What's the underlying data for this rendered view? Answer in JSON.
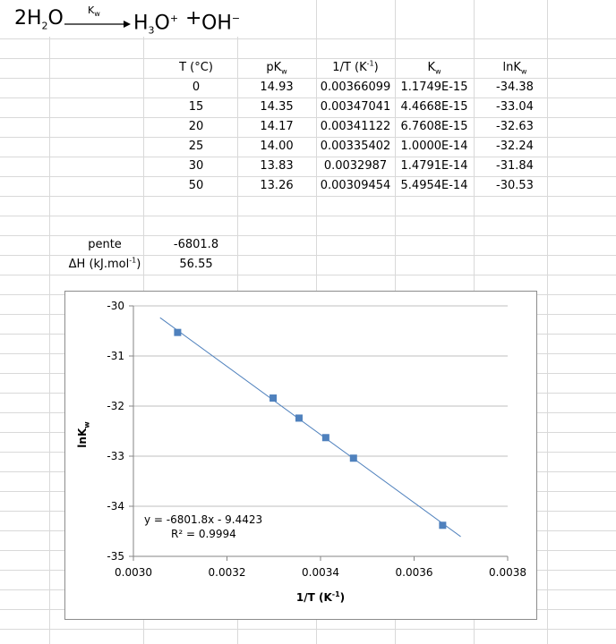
{
  "equation": {
    "left": "2H",
    "left_sub": "2",
    "left_end": "O",
    "catalyst": "K",
    "catalyst_sub": "w",
    "h3o": "H",
    "h3o_sub": "3",
    "h3o_end": "O",
    "h3o_sup": "+",
    "plus": "+",
    "oh": "OH",
    "oh_sup": "−"
  },
  "table": {
    "headers": {
      "t": "T (°C)",
      "pkw": "pK",
      "pkw_sub": "w",
      "invt": "1/T (K",
      "invt_sup": "-1",
      "invt_end": ")",
      "kw": "K",
      "kw_sub": "w",
      "lnkw": "lnK",
      "lnkw_sub": "w"
    },
    "rows": [
      {
        "t": "0",
        "pkw": "14.93",
        "invt": "0.00366099",
        "kw": "1.1749E-15",
        "lnkw": "-34.38"
      },
      {
        "t": "15",
        "pkw": "14.35",
        "invt": "0.00347041",
        "kw": "4.4668E-15",
        "lnkw": "-33.04"
      },
      {
        "t": "20",
        "pkw": "14.17",
        "invt": "0.00341122",
        "kw": "6.7608E-15",
        "lnkw": "-32.63"
      },
      {
        "t": "25",
        "pkw": "14.00",
        "invt": "0.00335402",
        "kw": "1.0000E-14",
        "lnkw": "-32.24"
      },
      {
        "t": "30",
        "pkw": "13.83",
        "invt": "0.0032987",
        "kw": "1.4791E-14",
        "lnkw": "-31.84"
      },
      {
        "t": "50",
        "pkw": "13.26",
        "invt": "0.00309454",
        "kw": "5.4954E-14",
        "lnkw": "-30.53"
      }
    ]
  },
  "results": {
    "pente_label": "pente",
    "pente_value": "-6801.8",
    "dh_label": "ΔH (kJ.mol",
    "dh_sup": "-1",
    "dh_end": ")",
    "dh_value": "56.55"
  },
  "chart_data": {
    "type": "scatter",
    "xlabel": "1/T (K",
    "xlabel_sup": "-1",
    "xlabel_end": ")",
    "ylabel": "lnK",
    "ylabel_sub": "w",
    "xlim": [
      0.003,
      0.0038
    ],
    "ylim": [
      -35,
      -30
    ],
    "x_ticks": [
      "0.0030",
      "0.0032",
      "0.0034",
      "0.0036",
      "0.0038"
    ],
    "y_ticks": [
      "-30",
      "-31",
      "-32",
      "-33",
      "-34",
      "-35"
    ],
    "grid": "horizontal",
    "series": [
      {
        "x": [
          0.00366099,
          0.00347041,
          0.00341122,
          0.00335402,
          0.0032987,
          0.00309454
        ],
        "y": [
          -34.38,
          -33.04,
          -32.63,
          -32.24,
          -31.84,
          -30.53
        ],
        "color": "#4f81bd"
      }
    ],
    "trendline": {
      "slope": -6801.8,
      "intercept": -9.4423,
      "x_range": [
        0.003057,
        0.0036996
      ],
      "color": "#4f81bd",
      "equation": "y = -6801.8x - 9.4423",
      "r2": "R² = 0.9994"
    }
  }
}
